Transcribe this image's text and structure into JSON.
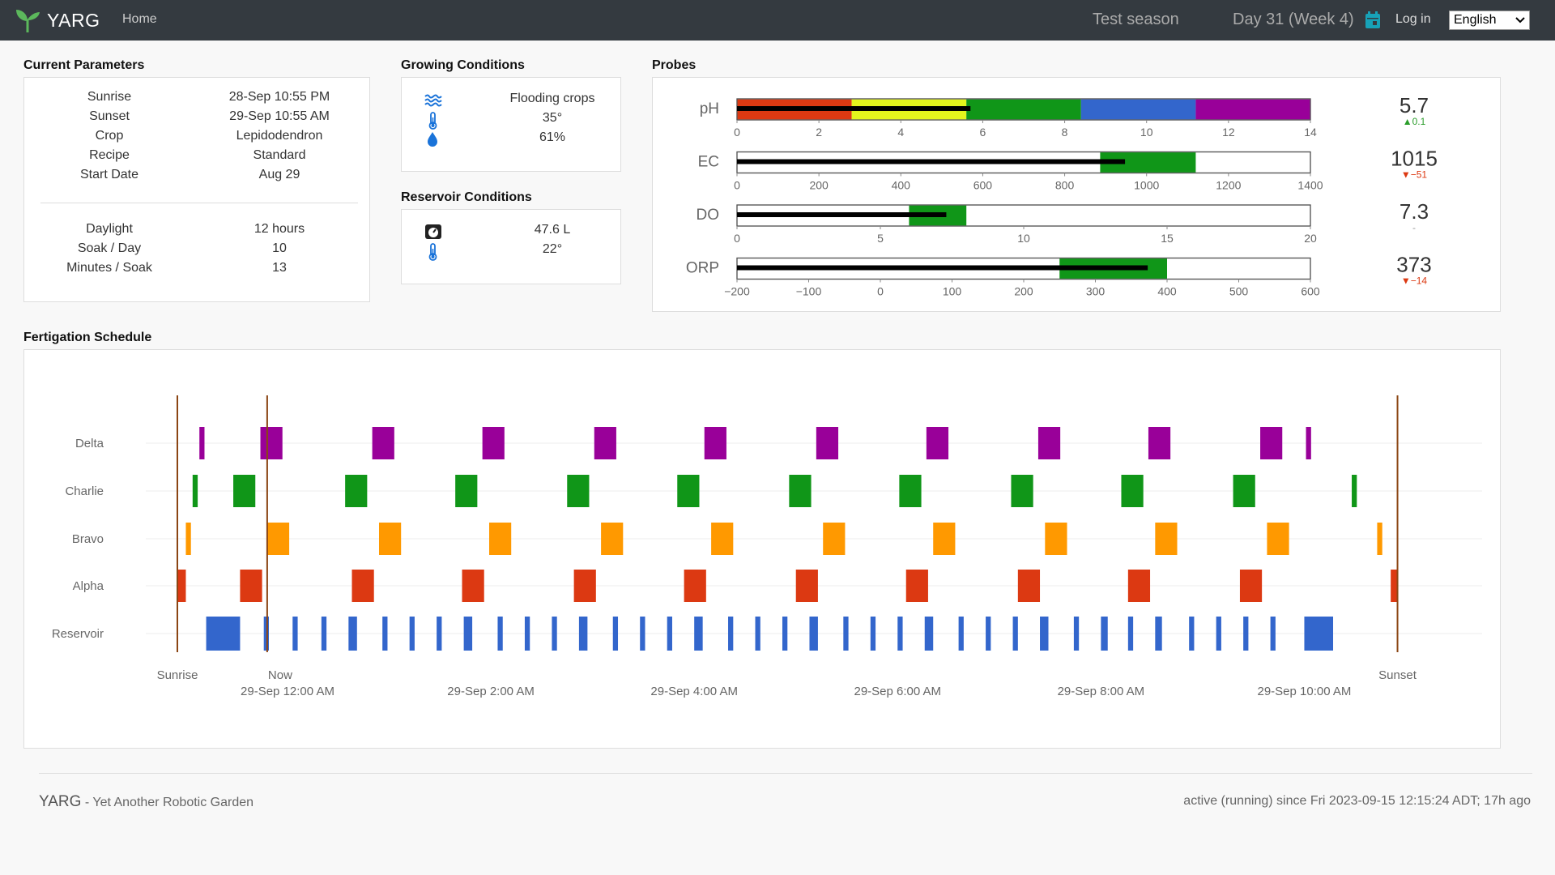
{
  "nav": {
    "brand": "YARG",
    "home": "Home",
    "season": "Test season",
    "day": "Day 31 (Week 4)",
    "login": "Log in",
    "language": "English",
    "colors": {
      "bar": "#343a40",
      "leaf": "#5cb85c",
      "calendar": "#17a2b8"
    }
  },
  "current_parameters": {
    "title": "Current Parameters",
    "rows": [
      {
        "label": "Sunrise",
        "value": "28-Sep 10:55 PM"
      },
      {
        "label": "Sunset",
        "value": "29-Sep 10:55 AM"
      },
      {
        "label": "Crop",
        "value": "Lepidodendron"
      },
      {
        "label": "Recipe",
        "value": "Standard"
      },
      {
        "label": "Start Date",
        "value": "Aug 29"
      }
    ],
    "rows2": [
      {
        "label": "Daylight",
        "value": "12 hours"
      },
      {
        "label": "Soak / Day",
        "value": "10"
      },
      {
        "label": "Minutes / Soak",
        "value": "13"
      }
    ]
  },
  "growing_conditions": {
    "title": "Growing Conditions",
    "rows": [
      {
        "icon": "water-waves-icon",
        "value": "Flooding crops"
      },
      {
        "icon": "thermometer-icon",
        "value": "35°"
      },
      {
        "icon": "droplet-icon",
        "value": "61%"
      }
    ]
  },
  "reservoir_conditions": {
    "title": "Reservoir Conditions",
    "rows": [
      {
        "icon": "gauge-icon",
        "value": "47.6 L"
      },
      {
        "icon": "thermometer-icon",
        "value": "22°"
      }
    ]
  },
  "probes": {
    "title": "Probes",
    "items": [
      {
        "name": "pH",
        "range": [
          0,
          14
        ],
        "ticks": [
          "0",
          "2",
          "4",
          "6",
          "8",
          "10",
          "12",
          "14"
        ],
        "bands": [
          {
            "from": 0,
            "to": 2.8,
            "color": "#dc3912"
          },
          {
            "from": 2.8,
            "to": 5.6,
            "color": "#e4f51d"
          },
          {
            "from": 5.6,
            "to": 8.4,
            "color": "#109618"
          },
          {
            "from": 8.4,
            "to": 11.2,
            "color": "#3366cc"
          },
          {
            "from": 11.2,
            "to": 14,
            "color": "#990099"
          }
        ],
        "measure": 5.7,
        "value": "5.7",
        "delta": "▲0.1",
        "delta_dir": "up"
      },
      {
        "name": "EC",
        "range": [
          0,
          1500
        ],
        "ticks": [
          "0",
          "200",
          "400",
          "600",
          "800",
          "1000",
          "1200",
          "1400"
        ],
        "bands": [
          {
            "from": 950,
            "to": 1200,
            "color": "#109618"
          }
        ],
        "measure": 1015,
        "value": "1015",
        "delta": "▼−51",
        "delta_dir": "down"
      },
      {
        "name": "DO",
        "range": [
          0,
          20
        ],
        "ticks": [
          "0",
          "5",
          "10",
          "15",
          "20"
        ],
        "bands": [
          {
            "from": 6,
            "to": 8,
            "color": "#109618"
          }
        ],
        "measure": 7.3,
        "value": "7.3",
        "delta": "-",
        "delta_dir": "none"
      },
      {
        "name": "ORP",
        "range": [
          -200,
          600
        ],
        "ticks": [
          "−200",
          "−100",
          "0",
          "100",
          "200",
          "300",
          "400",
          "500",
          "600"
        ],
        "bands": [
          {
            "from": 250,
            "to": 400,
            "color": "#109618"
          }
        ],
        "measure": 373,
        "value": "373",
        "delta": "▼−14",
        "delta_dir": "down"
      }
    ]
  },
  "fertigation": {
    "title": "Fertigation Schedule"
  },
  "chart_data": {
    "type": "timeline",
    "x_unit": "minutes since 29-Sep 12:00 AM",
    "rows": [
      "Delta",
      "Charlie",
      "Bravo",
      "Alpha",
      "Reservoir"
    ],
    "colors": {
      "Delta": "#990099",
      "Charlie": "#109618",
      "Bravo": "#ff9900",
      "Alpha": "#dc3912",
      "Reservoir": "#3366cc"
    },
    "xlim": [
      -65,
      660
    ],
    "markers": [
      {
        "label": "Sunrise",
        "x": -65
      },
      {
        "label": "Now",
        "x": -12
      },
      {
        "label": "Sunset",
        "x": 655
      }
    ],
    "x_ticks": [
      {
        "label": "29-Sep 12:00 AM",
        "x": 0
      },
      {
        "label": "29-Sep 2:00 AM",
        "x": 120
      },
      {
        "label": "29-Sep 4:00 AM",
        "x": 240
      },
      {
        "label": "29-Sep 6:00 AM",
        "x": 360
      },
      {
        "label": "29-Sep 8:00 AM",
        "x": 480
      },
      {
        "label": "29-Sep 10:00 AM",
        "x": 600
      }
    ],
    "Delta": [
      [
        -52,
        -49
      ],
      [
        -16,
        -3
      ],
      [
        50,
        63
      ],
      [
        115,
        128
      ],
      [
        181,
        194
      ],
      [
        246,
        259
      ],
      [
        312,
        325
      ],
      [
        377,
        390
      ],
      [
        443,
        456
      ],
      [
        508,
        521
      ],
      [
        574,
        587
      ],
      [
        601,
        604
      ]
    ],
    "Charlie": [
      [
        -56,
        -53
      ],
      [
        -32,
        -19
      ],
      [
        34,
        47
      ],
      [
        99,
        112
      ],
      [
        165,
        178
      ],
      [
        230,
        243
      ],
      [
        296,
        309
      ],
      [
        361,
        374
      ],
      [
        427,
        440
      ],
      [
        492,
        505
      ],
      [
        558,
        571
      ],
      [
        628,
        631
      ]
    ],
    "Bravo": [
      [
        -60,
        -57
      ],
      [
        -12,
        1
      ],
      [
        54,
        67
      ],
      [
        119,
        132
      ],
      [
        185,
        198
      ],
      [
        250,
        263
      ],
      [
        316,
        329
      ],
      [
        381,
        394
      ],
      [
        447,
        460
      ],
      [
        512,
        525
      ],
      [
        578,
        591
      ],
      [
        643,
        646
      ]
    ],
    "Alpha": [
      [
        -65,
        -60
      ],
      [
        -28,
        -15
      ],
      [
        38,
        51
      ],
      [
        103,
        116
      ],
      [
        169,
        182
      ],
      [
        234,
        247
      ],
      [
        300,
        313
      ],
      [
        365,
        378
      ],
      [
        431,
        444
      ],
      [
        496,
        509
      ],
      [
        562,
        575
      ],
      [
        651,
        655
      ]
    ],
    "Reservoir": [
      [
        -48,
        -28
      ],
      [
        -14,
        -11
      ],
      [
        3,
        6
      ],
      [
        20,
        23
      ],
      [
        36,
        41
      ],
      [
        56,
        59
      ],
      [
        72,
        75
      ],
      [
        88,
        91
      ],
      [
        104,
        109
      ],
      [
        124,
        127
      ],
      [
        140,
        143
      ],
      [
        156,
        159
      ],
      [
        172,
        177
      ],
      [
        192,
        195
      ],
      [
        208,
        211
      ],
      [
        224,
        227
      ],
      [
        240,
        245
      ],
      [
        260,
        263
      ],
      [
        276,
        279
      ],
      [
        292,
        295
      ],
      [
        308,
        313
      ],
      [
        328,
        331
      ],
      [
        344,
        347
      ],
      [
        360,
        363
      ],
      [
        376,
        381
      ],
      [
        396,
        399
      ],
      [
        412,
        415
      ],
      [
        428,
        431
      ],
      [
        444,
        449
      ],
      [
        464,
        467
      ],
      [
        480,
        484
      ],
      [
        496,
        499
      ],
      [
        512,
        516
      ],
      [
        532,
        535
      ],
      [
        548,
        551
      ],
      [
        564,
        567
      ],
      [
        580,
        583
      ],
      [
        600,
        617
      ]
    ]
  },
  "footer": {
    "brand": "YARG",
    "tagline": " - Yet Another Robotic Garden",
    "status": "active (running) since Fri 2023-09-15 12:15:24 ADT; 17h ago"
  }
}
